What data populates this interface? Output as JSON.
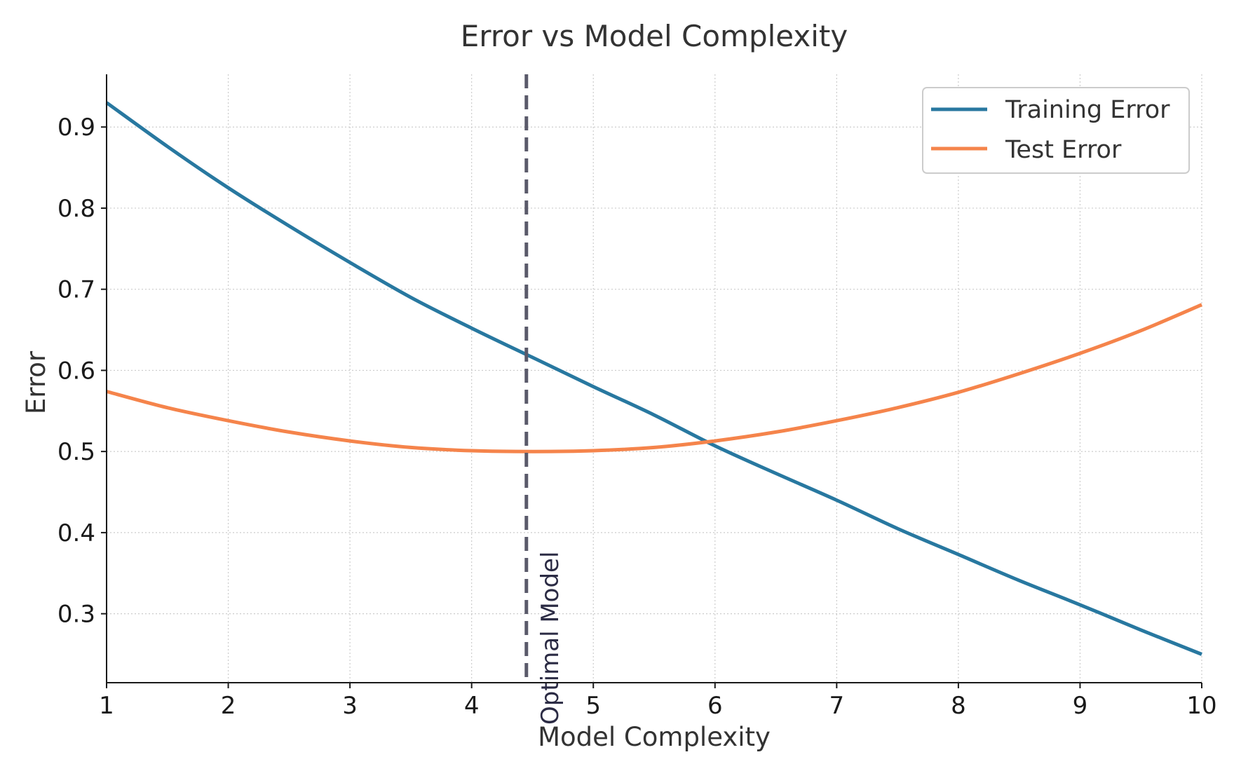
{
  "chart_data": {
    "type": "line",
    "title": "Error vs Model Complexity",
    "xlabel": "Model Complexity",
    "ylabel": "Error",
    "xlim": [
      1,
      10
    ],
    "ylim": [
      0.215,
      0.965
    ],
    "xticks": [
      1,
      2,
      3,
      4,
      5,
      6,
      7,
      8,
      9,
      10
    ],
    "yticks": [
      0.3,
      0.4,
      0.5,
      0.6,
      0.7,
      0.8,
      0.9
    ],
    "grid": true,
    "legend_position": "top-right",
    "x": [
      1,
      1.5,
      2,
      2.5,
      3,
      3.5,
      4,
      4.5,
      5,
      5.5,
      6,
      6.5,
      7,
      7.5,
      8,
      8.5,
      9,
      9.5,
      10
    ],
    "series": [
      {
        "name": "Training Error",
        "color": "#2878a0",
        "values": [
          0.93,
          0.876,
          0.825,
          0.778,
          0.733,
          0.69,
          0.652,
          0.616,
          0.58,
          0.545,
          0.507,
          0.473,
          0.44,
          0.405,
          0.373,
          0.341,
          0.311,
          0.28,
          0.25
        ]
      },
      {
        "name": "Test Error",
        "color": "#f5844b",
        "values": [
          0.574,
          0.554,
          0.538,
          0.524,
          0.513,
          0.505,
          0.501,
          0.5,
          0.501,
          0.505,
          0.513,
          0.524,
          0.538,
          0.554,
          0.573,
          0.596,
          0.621,
          0.649,
          0.681
        ]
      }
    ],
    "annotations": [
      {
        "type": "vline",
        "x": 4.45,
        "label": "Optimal Model",
        "color": "#5a5a6a"
      }
    ]
  }
}
